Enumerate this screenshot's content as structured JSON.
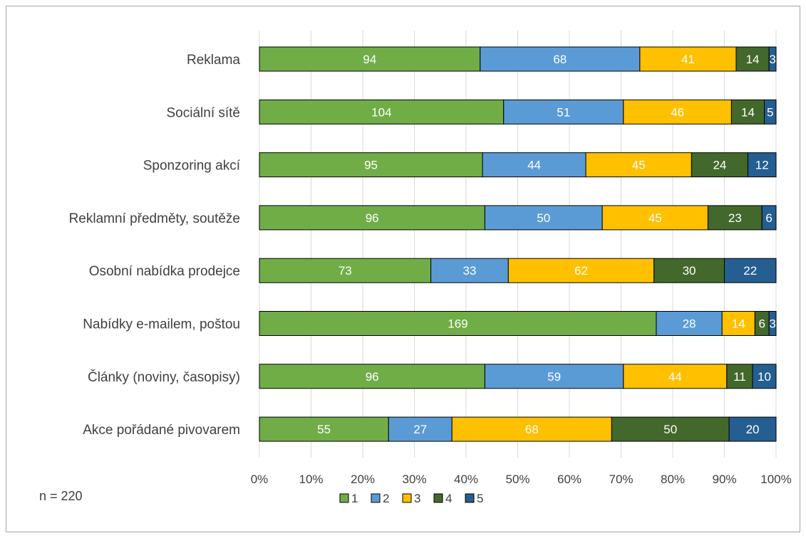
{
  "chart_data": {
    "type": "bar",
    "orientation": "horizontal",
    "stacked": "percent",
    "categories": [
      "Reklama",
      "Sociální sítě",
      "Sponzoring akcí",
      "Reklamní předměty, soutěže",
      "Osobní nabídka prodejce",
      "Nabídky e-mailem, poštou",
      "Články (noviny, časopisy)",
      "Akce pořádané pivovarem"
    ],
    "series": [
      {
        "name": "1",
        "color": "#70ad47",
        "values": [
          94,
          104,
          95,
          96,
          73,
          169,
          96,
          55
        ]
      },
      {
        "name": "2",
        "color": "#5b9bd5",
        "values": [
          68,
          51,
          44,
          50,
          33,
          28,
          59,
          27
        ]
      },
      {
        "name": "3",
        "color": "#ffc000",
        "values": [
          41,
          46,
          45,
          45,
          62,
          14,
          44,
          68
        ]
      },
      {
        "name": "4",
        "color": "#43682b",
        "values": [
          14,
          14,
          24,
          23,
          30,
          6,
          11,
          50
        ]
      },
      {
        "name": "5",
        "color": "#255e91",
        "values": [
          3,
          5,
          12,
          6,
          22,
          3,
          10,
          20
        ]
      }
    ],
    "x_ticks": [
      "0%",
      "10%",
      "20%",
      "30%",
      "40%",
      "50%",
      "60%",
      "70%",
      "80%",
      "90%",
      "100%"
    ],
    "xlim": [
      0,
      100
    ],
    "grid": true,
    "legend_position": "bottom",
    "note": "n = 220"
  }
}
